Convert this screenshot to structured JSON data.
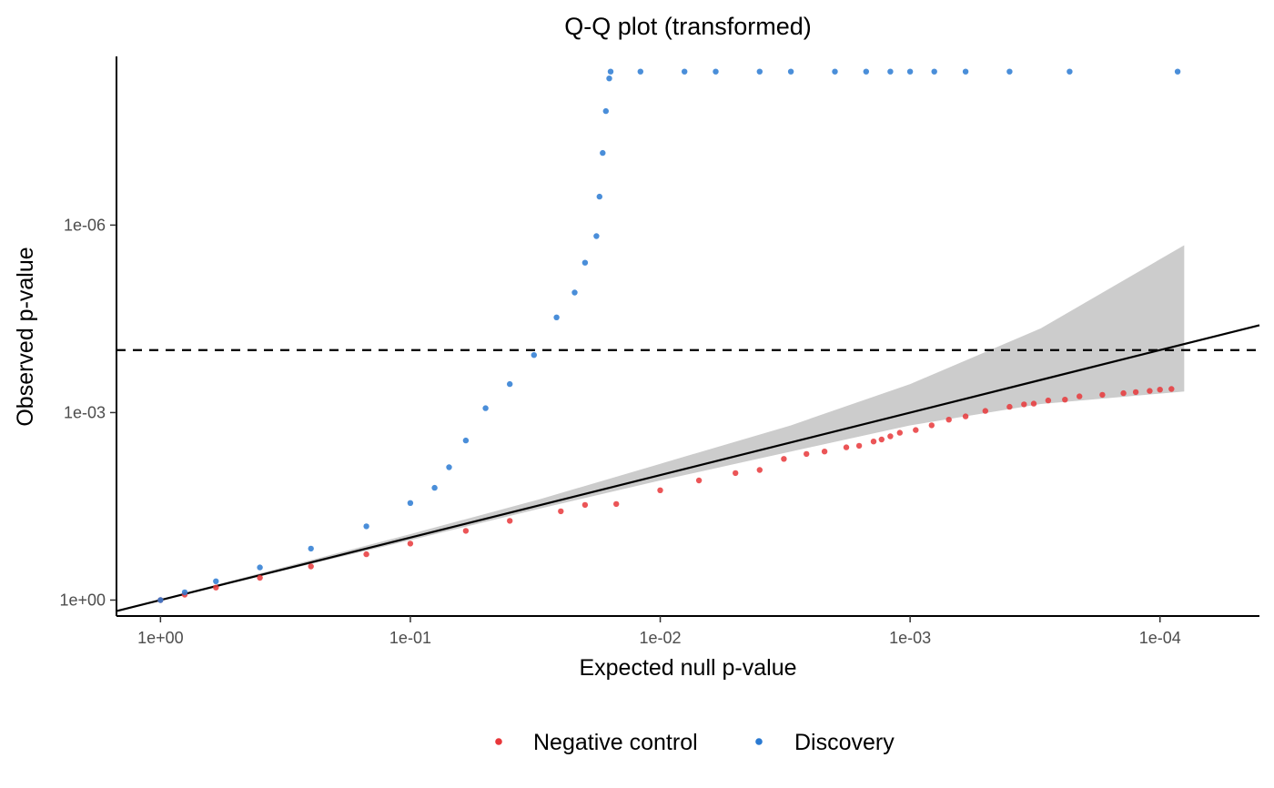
{
  "chart_data": {
    "type": "scatter",
    "title": "Q-Q plot (transformed)",
    "xlabel": "Expected null p-value",
    "ylabel": "Observed p-value",
    "x_scale": "-log10 (reversed p-value)",
    "y_scale": "-log10 (p-value increasing upward)",
    "x_ticks": [
      "1e+00",
      "1e-01",
      "1e-02",
      "1e-03",
      "1e-04"
    ],
    "y_ticks": [
      "1e+00",
      "1e-03",
      "1e-06"
    ],
    "xlim_p": [
      1.5,
      4e-05
    ],
    "ylim_p": [
      1.8,
      2e-09
    ],
    "grid": false,
    "legend_position": "bottom",
    "reference_line": {
      "type": "identity",
      "color": "#000000"
    },
    "threshold_line": {
      "p": 0.0001,
      "style": "dashed",
      "color": "#000000"
    },
    "confidence_band": {
      "color": "#cccccc",
      "x_p": [
        1.0,
        0.1,
        0.03,
        0.01,
        0.003,
        0.001,
        0.0003,
        8e-05
      ],
      "upper_p": [
        0.97,
        0.088,
        0.024,
        0.0066,
        0.0016,
        0.00035,
        4.5e-05,
        2.1e-06
      ],
      "lower_p": [
        1.0,
        0.11,
        0.034,
        0.0122,
        0.0042,
        0.0016,
        0.00073,
        0.00046
      ]
    },
    "series": [
      {
        "name": "Negative control",
        "color": "#e8373a",
        "points": [
          [
            1.0,
            1.0
          ],
          [
            0.8,
            0.82
          ],
          [
            0.6,
            0.63
          ],
          [
            0.4,
            0.44
          ],
          [
            0.25,
            0.29
          ],
          [
            0.15,
            0.185
          ],
          [
            0.1,
            0.125
          ],
          [
            0.06,
            0.078
          ],
          [
            0.04,
            0.054
          ],
          [
            0.025,
            0.038
          ],
          [
            0.02,
            0.03
          ],
          [
            0.015,
            0.029
          ],
          [
            0.01,
            0.0175
          ],
          [
            0.007,
            0.0122
          ],
          [
            0.005,
            0.0093
          ],
          [
            0.004,
            0.0083
          ],
          [
            0.0032,
            0.0055
          ],
          [
            0.0026,
            0.0046
          ],
          [
            0.0022,
            0.0042
          ],
          [
            0.0018,
            0.0036
          ],
          [
            0.0016,
            0.0034
          ],
          [
            0.0014,
            0.0029
          ],
          [
            0.0013,
            0.0027
          ],
          [
            0.0012,
            0.0024
          ],
          [
            0.0011,
            0.0021
          ],
          [
            0.00095,
            0.0019
          ],
          [
            0.00082,
            0.0016
          ],
          [
            0.0007,
            0.0013
          ],
          [
            0.0006,
            0.00115
          ],
          [
            0.0005,
            0.00094
          ],
          [
            0.0004,
            0.00081
          ],
          [
            0.00035,
            0.00074
          ],
          [
            0.00032,
            0.00072
          ],
          [
            0.00028,
            0.00064
          ],
          [
            0.00024,
            0.00062
          ],
          [
            0.00021,
            0.00055
          ],
          [
            0.00017,
            0.00052
          ],
          [
            0.00014,
            0.00049
          ],
          [
            0.000125,
            0.00047
          ],
          [
            0.00011,
            0.00045
          ],
          [
            0.0001,
            0.00043
          ],
          [
            9e-05,
            0.00042
          ]
        ]
      },
      {
        "name": "Discovery",
        "color": "#2a7ad2",
        "points": [
          [
            1.0,
            1.0
          ],
          [
            0.8,
            0.75
          ],
          [
            0.6,
            0.5
          ],
          [
            0.4,
            0.3
          ],
          [
            0.25,
            0.15
          ],
          [
            0.15,
            0.066
          ],
          [
            0.1,
            0.028
          ],
          [
            0.08,
            0.016
          ],
          [
            0.07,
            0.0075
          ],
          [
            0.06,
            0.0028
          ],
          [
            0.05,
            0.00085
          ],
          [
            0.04,
            0.00035
          ],
          [
            0.032,
            0.00012
          ],
          [
            0.026,
            3e-05
          ],
          [
            0.022,
            1.2e-05
          ],
          [
            0.02,
            4e-06
          ],
          [
            0.018,
            1.5e-06
          ],
          [
            0.0175,
            3.5e-07
          ],
          [
            0.017,
            7e-08
          ],
          [
            0.0165,
            1.5e-08
          ],
          [
            0.016,
            4.5e-09
          ],
          [
            0.0158,
            3.5e-09
          ],
          [
            0.012,
            3.5e-09
          ],
          [
            0.008,
            3.5e-09
          ],
          [
            0.006,
            3.5e-09
          ],
          [
            0.004,
            3.5e-09
          ],
          [
            0.003,
            3.5e-09
          ],
          [
            0.002,
            3.5e-09
          ],
          [
            0.0015,
            3.5e-09
          ],
          [
            0.0012,
            3.5e-09
          ],
          [
            0.001,
            3.5e-09
          ],
          [
            0.0008,
            3.5e-09
          ],
          [
            0.0006,
            3.5e-09
          ],
          [
            0.0004,
            3.5e-09
          ],
          [
            0.00023,
            3.5e-09
          ],
          [
            8.5e-05,
            3.5e-09
          ]
        ]
      }
    ]
  }
}
